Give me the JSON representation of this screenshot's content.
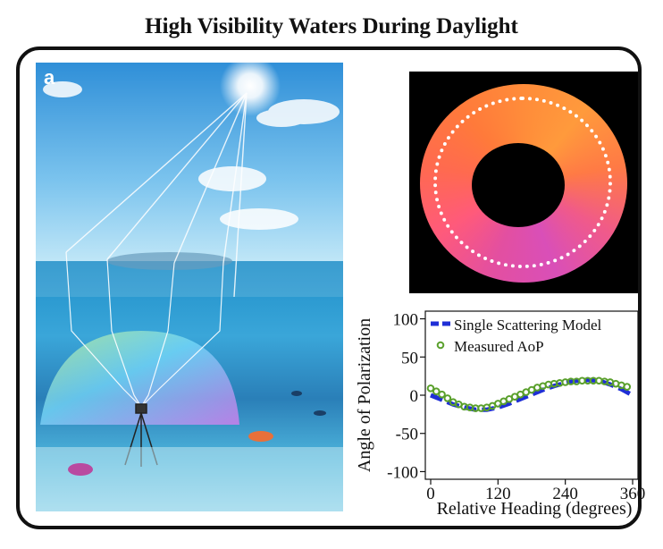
{
  "title": "High Visibility Waters During Daylight",
  "panel_label": "a",
  "chart_data": {
    "type": "line",
    "xlabel": "Relative Heading (degrees)",
    "ylabel": "Angle of Polarization",
    "xlim": [
      0,
      360
    ],
    "ylim": [
      -110,
      110
    ],
    "xticks": [
      0,
      120,
      240,
      360
    ],
    "yticks": [
      100,
      50,
      0,
      -50,
      -100
    ],
    "grid": false,
    "legend_position": "top-left",
    "series": [
      {
        "name": "Single Scattering Model",
        "style": "dashed",
        "color": "#1f2fd6",
        "x": [
          0,
          20,
          40,
          60,
          80,
          100,
          120,
          140,
          160,
          180,
          200,
          220,
          240,
          260,
          280,
          300,
          320,
          340,
          360
        ],
        "y": [
          0,
          -6,
          -12,
          -16,
          -19,
          -19,
          -16,
          -11,
          -5,
          1,
          7,
          12,
          16,
          19,
          20,
          19,
          14,
          8,
          0
        ]
      },
      {
        "name": "Measured AoP",
        "style": "markers",
        "color": "#5aa02c",
        "x": [
          0,
          10,
          20,
          30,
          40,
          50,
          60,
          70,
          80,
          90,
          100,
          110,
          120,
          130,
          140,
          150,
          160,
          170,
          180,
          190,
          200,
          210,
          220,
          230,
          240,
          250,
          260,
          270,
          280,
          290,
          300,
          310,
          320,
          330,
          340,
          350
        ],
        "y": [
          9,
          5,
          1,
          -4,
          -9,
          -12,
          -15,
          -16,
          -17,
          -17,
          -16,
          -14,
          -11,
          -8,
          -5,
          -2,
          1,
          4,
          7,
          10,
          12,
          14,
          15,
          16,
          17,
          18,
          18,
          19,
          19,
          19,
          19,
          18,
          17,
          15,
          13,
          11
        ]
      }
    ]
  }
}
